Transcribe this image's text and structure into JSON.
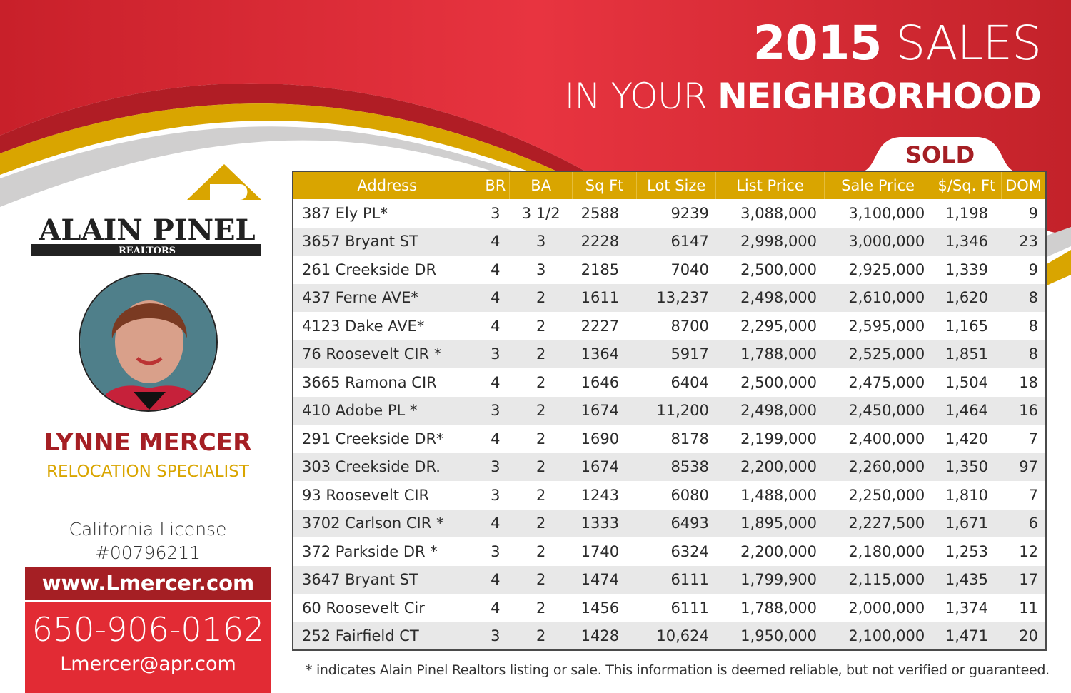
{
  "header": {
    "year": "2015",
    "sales": "SALES",
    "line2_light": "IN YOUR",
    "line2_bold": "NEIGHBORHOOD",
    "sold_tab": "SOLD"
  },
  "colors": {
    "red": "#e22b34",
    "dark_red": "#a51f24",
    "gold": "#d9a500"
  },
  "table": {
    "columns": [
      "Address",
      "BR",
      "BA",
      "Sq Ft",
      "Lot Size",
      "List Price",
      "Sale Price",
      "$/Sq. Ft",
      "DOM"
    ],
    "rows": [
      [
        "387 Ely PL*",
        "3",
        "3 1/2",
        "2588",
        "9239",
        "3,088,000",
        "3,100,000",
        "1,198",
        "9"
      ],
      [
        "3657 Bryant ST",
        "4",
        "3",
        "2228",
        "6147",
        "2,998,000",
        "3,000,000",
        "1,346",
        "23"
      ],
      [
        "261 Creekside DR",
        "4",
        "3",
        "2185",
        "7040",
        "2,500,000",
        "2,925,000",
        "1,339",
        "9"
      ],
      [
        "437 Ferne AVE*",
        "4",
        "2",
        "1611",
        "13,237",
        "2,498,000",
        "2,610,000",
        "1,620",
        "8"
      ],
      [
        "4123 Dake AVE*",
        "4",
        "2",
        "2227",
        "8700",
        "2,295,000",
        "2,595,000",
        "1,165",
        "8"
      ],
      [
        "76 Roosevelt CIR *",
        "3",
        "2",
        "1364",
        "5917",
        "1,788,000",
        "2,525,000",
        "1,851",
        "8"
      ],
      [
        "3665 Ramona CIR",
        "4",
        "2",
        "1646",
        "6404",
        "2,500,000",
        "2,475,000",
        "1,504",
        "18"
      ],
      [
        "410 Adobe PL *",
        "3",
        "2",
        "1674",
        "11,200",
        "2,498,000",
        "2,450,000",
        "1,464",
        "16"
      ],
      [
        "291 Creekside DR*",
        "4",
        "2",
        "1690",
        "8178",
        "2,199,000",
        "2,400,000",
        "1,420",
        "7"
      ],
      [
        "303 Creekside DR.",
        "3",
        "2",
        "1674",
        "8538",
        "2,200,000",
        "2,260,000",
        "1,350",
        "97"
      ],
      [
        "93 Roosevelt CIR",
        "3",
        "2",
        "1243",
        "6080",
        "1,488,000",
        "2,250,000",
        "1,810",
        "7"
      ],
      [
        "3702 Carlson CIR *",
        "4",
        "2",
        "1333",
        "6493",
        "1,895,000",
        "2,227,500",
        "1,671",
        "6"
      ],
      [
        "372 Parkside DR *",
        "3",
        "2",
        "1740",
        "6324",
        "2,200,000",
        "2,180,000",
        "1,253",
        "12"
      ],
      [
        "3647 Bryant ST",
        "4",
        "2",
        "1474",
        "6111",
        "1,799,900",
        "2,115,000",
        "1,435",
        "17"
      ],
      [
        "60 Roosevelt Cir",
        "4",
        "2",
        "1456",
        "6111",
        "1,788,000",
        "2,000,000",
        "1,374",
        "11"
      ],
      [
        "252 Fairfield CT",
        "3",
        "2",
        "1428",
        "10,624",
        "1,950,000",
        "2,100,000",
        "1,471",
        "20"
      ]
    ]
  },
  "agent": {
    "logo_name": "ALAIN PINEL",
    "logo_sub": "REALTORS",
    "name": "LYNNE MERCER",
    "role": "RELOCATION SPECIALIST",
    "license_label": "California License",
    "license_number": "#00796211",
    "website": "www.Lmercer.com",
    "phone": "650-906-0162",
    "email": "Lmercer@apr.com"
  },
  "footnote": "* indicates Alain Pinel Realtors listing or sale. This information is deemed reliable, but not verified or guaranteed."
}
